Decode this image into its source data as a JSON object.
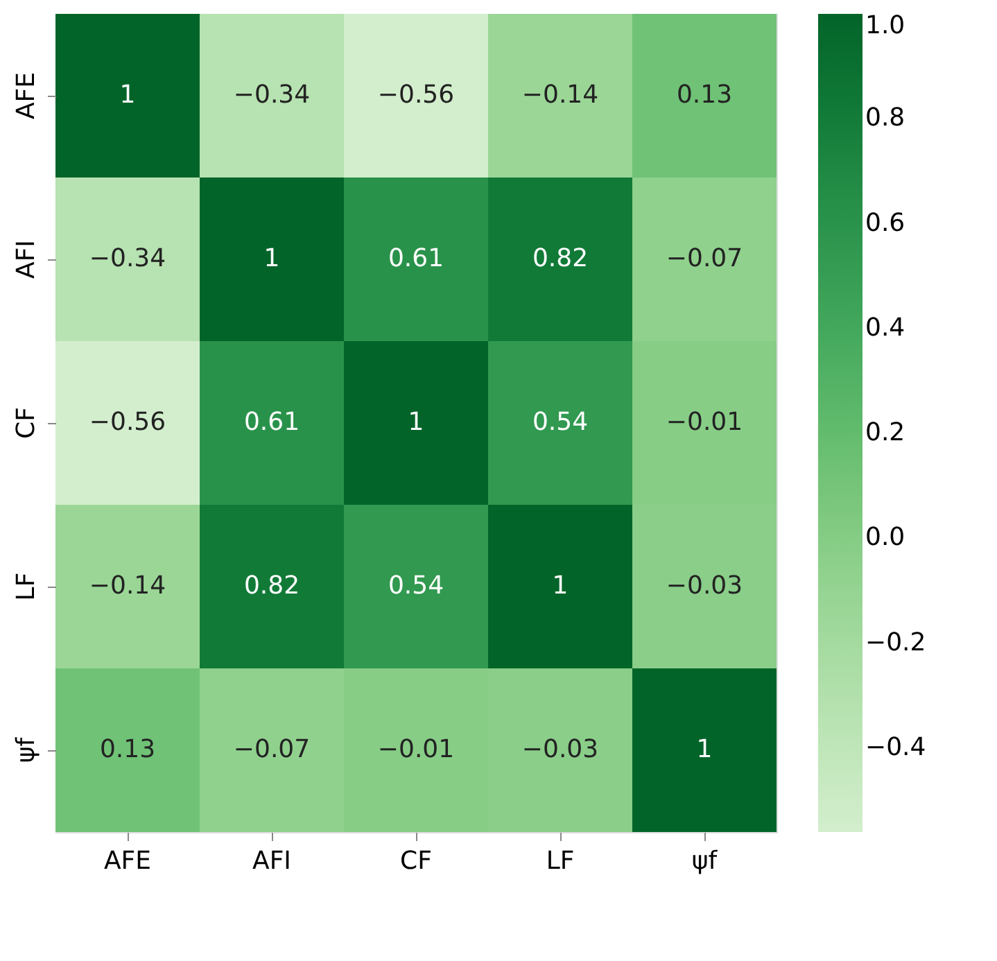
{
  "chart_data": {
    "type": "heatmap",
    "categories": [
      "AFE",
      "AFI",
      "CF",
      "LF",
      "ψf"
    ],
    "y_categories": [
      "AFE",
      "AFI",
      "CF",
      "LF",
      "ψf"
    ],
    "cells": [
      [
        1,
        -0.34,
        -0.56,
        -0.14,
        0.13
      ],
      [
        -0.34,
        1,
        0.61,
        0.82,
        -0.07
      ],
      [
        -0.56,
        0.61,
        1,
        0.54,
        -0.01
      ],
      [
        -0.14,
        0.82,
        0.54,
        1,
        -0.03
      ],
      [
        0.13,
        -0.07,
        -0.01,
        -0.03,
        1
      ]
    ],
    "data_labels": true,
    "clim": [
      -0.56,
      1.0
    ],
    "cticks": [
      {
        "value": -0.4,
        "label": "−0.4"
      },
      {
        "value": -0.2,
        "label": "−0.2"
      },
      {
        "value": 0,
        "label": "0.0"
      },
      {
        "value": 0.2,
        "label": "0.2"
      },
      {
        "value": 0.4,
        "label": "0.4"
      },
      {
        "value": 0.6,
        "label": "0.6"
      },
      {
        "value": 0.8,
        "label": "0.8"
      },
      {
        "value": 1.0,
        "label": "1.0"
      }
    ]
  }
}
